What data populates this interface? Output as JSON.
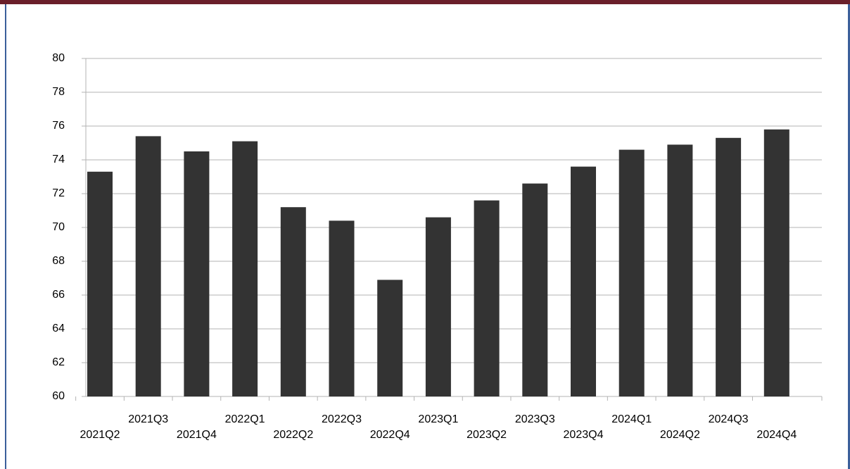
{
  "chart_data": {
    "type": "bar",
    "categories": [
      "2021Q2",
      "2021Q3",
      "2021Q4",
      "2022Q1",
      "2022Q2",
      "2022Q3",
      "2022Q4",
      "2023Q1",
      "2023Q2",
      "2023Q3",
      "2023Q4",
      "2024Q1",
      "2024Q2",
      "2024Q3",
      "2024Q4"
    ],
    "values": [
      73.3,
      75.4,
      74.5,
      75.1,
      71.2,
      70.4,
      66.9,
      70.6,
      71.6,
      72.6,
      73.6,
      74.6,
      74.9,
      75.3,
      75.8
    ],
    "color": "#333333",
    "ylim": [
      60,
      80
    ],
    "yticks": [
      60,
      62,
      64,
      66,
      68,
      70,
      72,
      74,
      76,
      78,
      80
    ],
    "grid": true
  }
}
